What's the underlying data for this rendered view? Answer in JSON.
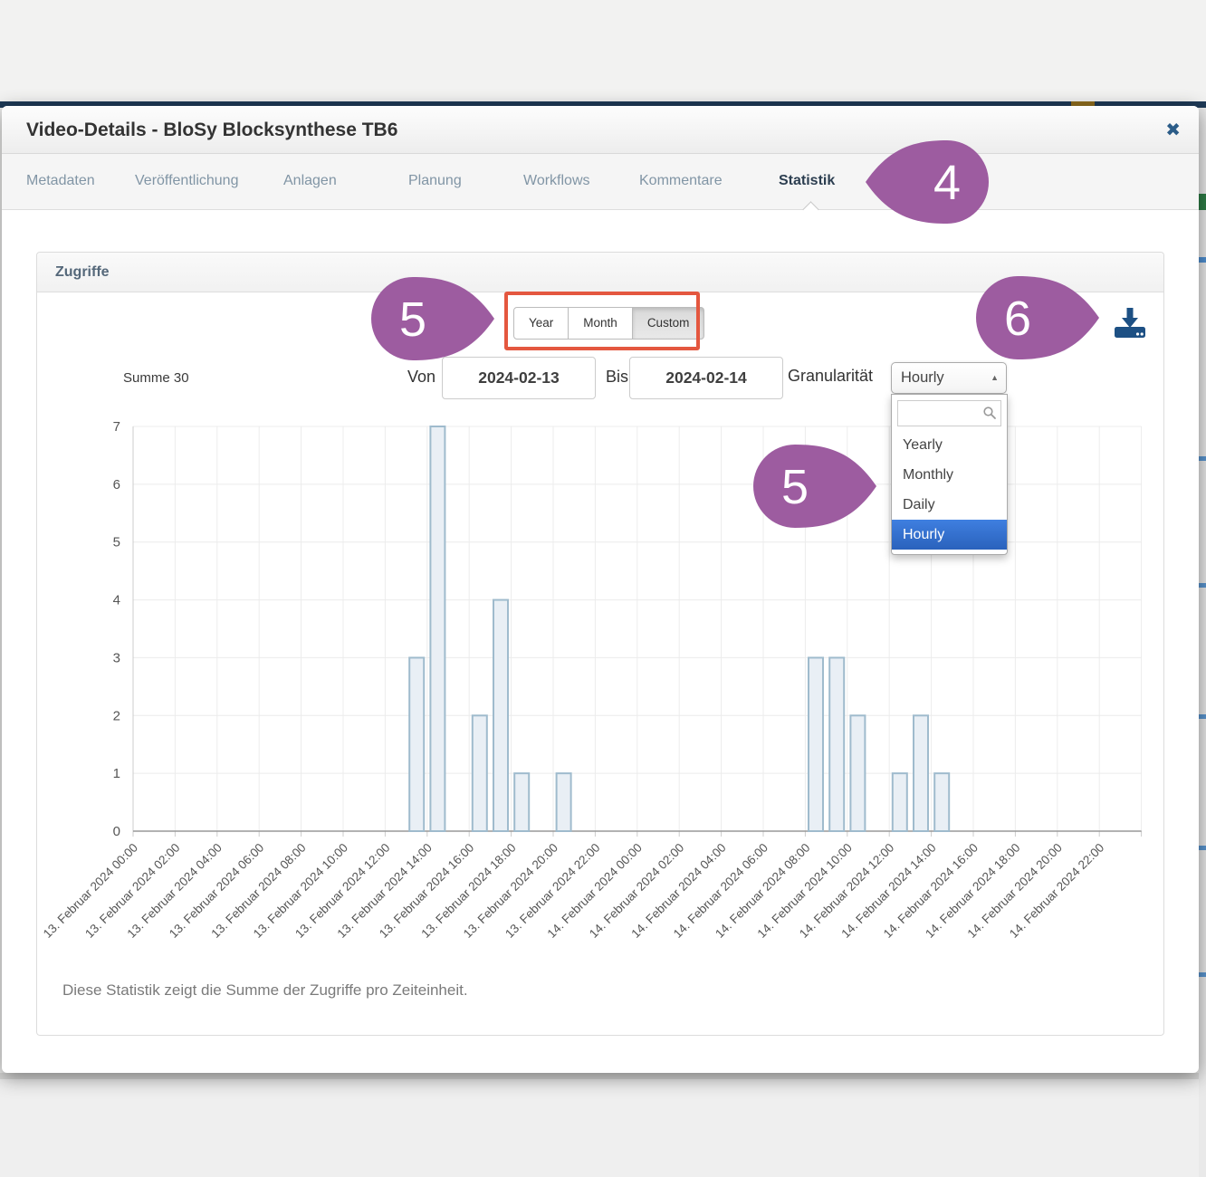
{
  "window": {
    "title": "Video-Details - BloSy Blocksynthese TB6"
  },
  "icons": {
    "close": "✖",
    "dropdown_arrow": "▲",
    "download": "download-tray-arrow",
    "search": "magnifier"
  },
  "tabs": [
    {
      "label": "Metadaten",
      "active": false
    },
    {
      "label": "Veröffentlichung",
      "active": false
    },
    {
      "label": "Anlagen",
      "active": false
    },
    {
      "label": "Planung",
      "active": false
    },
    {
      "label": "Workflows",
      "active": false
    },
    {
      "label": "Kommentare",
      "active": false
    },
    {
      "label": "Statistik",
      "active": true
    }
  ],
  "panel": {
    "title": "Zugriffe",
    "caption": "Diese Statistik zeigt die Summe der Zugriffe pro Zeiteinheit."
  },
  "toolbar": {
    "range_buttons": [
      "Year",
      "Month",
      "Custom"
    ],
    "selected_range": "Custom"
  },
  "summary": {
    "sum_label": "Summe 30"
  },
  "filters": {
    "von_label": "Von",
    "von_value": "2024-02-13",
    "bis_label": "Bis",
    "bis_value": "2024-02-14",
    "granularity_label": "Granularität",
    "granularity_value": "Hourly",
    "granularity_options": [
      "Yearly",
      "Monthly",
      "Daily",
      "Hourly"
    ],
    "granularity_selected": "Hourly",
    "search_value": ""
  },
  "markers": [
    {
      "label": "4",
      "direction": "left"
    },
    {
      "label": "5",
      "direction": "right"
    },
    {
      "label": "5",
      "direction": "right"
    },
    {
      "label": "6",
      "direction": "right"
    }
  ],
  "colors": {
    "marker_purple": "#9d5ca0",
    "highlight_red": "#e4573f",
    "bar_fill": "#e9eff5",
    "bar_stroke": "#9fbbcd",
    "selected_option_blue": "#3875d7",
    "icon_blue": "#1d5084",
    "grid": "#ececec",
    "axis": "#999999"
  },
  "chart_data": {
    "type": "bar",
    "title": "Zugriffe",
    "xlabel": "",
    "ylabel": "",
    "sum": 30,
    "granularity": "Hourly",
    "date_range": [
      "2024-02-13",
      "2024-02-14"
    ],
    "ylim": [
      0,
      7
    ],
    "yticks": [
      0,
      1,
      2,
      3,
      4,
      5,
      6,
      7
    ],
    "hours_span": 48,
    "grid": true,
    "x_tick_labels": [
      "13. Februar 2024 00:00",
      "13. Februar 2024 02:00",
      "13. Februar 2024 04:00",
      "13. Februar 2024 06:00",
      "13. Februar 2024 08:00",
      "13. Februar 2024 10:00",
      "13. Februar 2024 12:00",
      "13. Februar 2024 14:00",
      "13. Februar 2024 16:00",
      "13. Februar 2024 18:00",
      "13. Februar 2024 20:00",
      "13. Februar 2024 22:00",
      "14. Februar 2024 00:00",
      "14. Februar 2024 02:00",
      "14. Februar 2024 04:00",
      "14. Februar 2024 06:00",
      "14. Februar 2024 08:00",
      "14. Februar 2024 10:00",
      "14. Februar 2024 12:00",
      "14. Februar 2024 14:00",
      "14. Februar 2024 16:00",
      "14. Februar 2024 18:00",
      "14. Februar 2024 20:00",
      "14. Februar 2024 22:00"
    ],
    "bars": [
      {
        "time": "13. Februar 2024 13:00",
        "hour_index": 13,
        "value": 3
      },
      {
        "time": "13. Februar 2024 14:00",
        "hour_index": 14,
        "value": 7
      },
      {
        "time": "13. Februar 2024 16:00",
        "hour_index": 16,
        "value": 2
      },
      {
        "time": "13. Februar 2024 17:00",
        "hour_index": 17,
        "value": 4
      },
      {
        "time": "13. Februar 2024 18:00",
        "hour_index": 18,
        "value": 1
      },
      {
        "time": "13. Februar 2024 20:00",
        "hour_index": 20,
        "value": 1
      },
      {
        "time": "14. Februar 2024 08:00",
        "hour_index": 32,
        "value": 3
      },
      {
        "time": "14. Februar 2024 09:00",
        "hour_index": 33,
        "value": 3
      },
      {
        "time": "14. Februar 2024 10:00",
        "hour_index": 34,
        "value": 2
      },
      {
        "time": "14. Februar 2024 12:00",
        "hour_index": 36,
        "value": 1
      },
      {
        "time": "14. Februar 2024 13:00",
        "hour_index": 37,
        "value": 2
      },
      {
        "time": "14. Februar 2024 14:00",
        "hour_index": 38,
        "value": 1
      }
    ]
  }
}
